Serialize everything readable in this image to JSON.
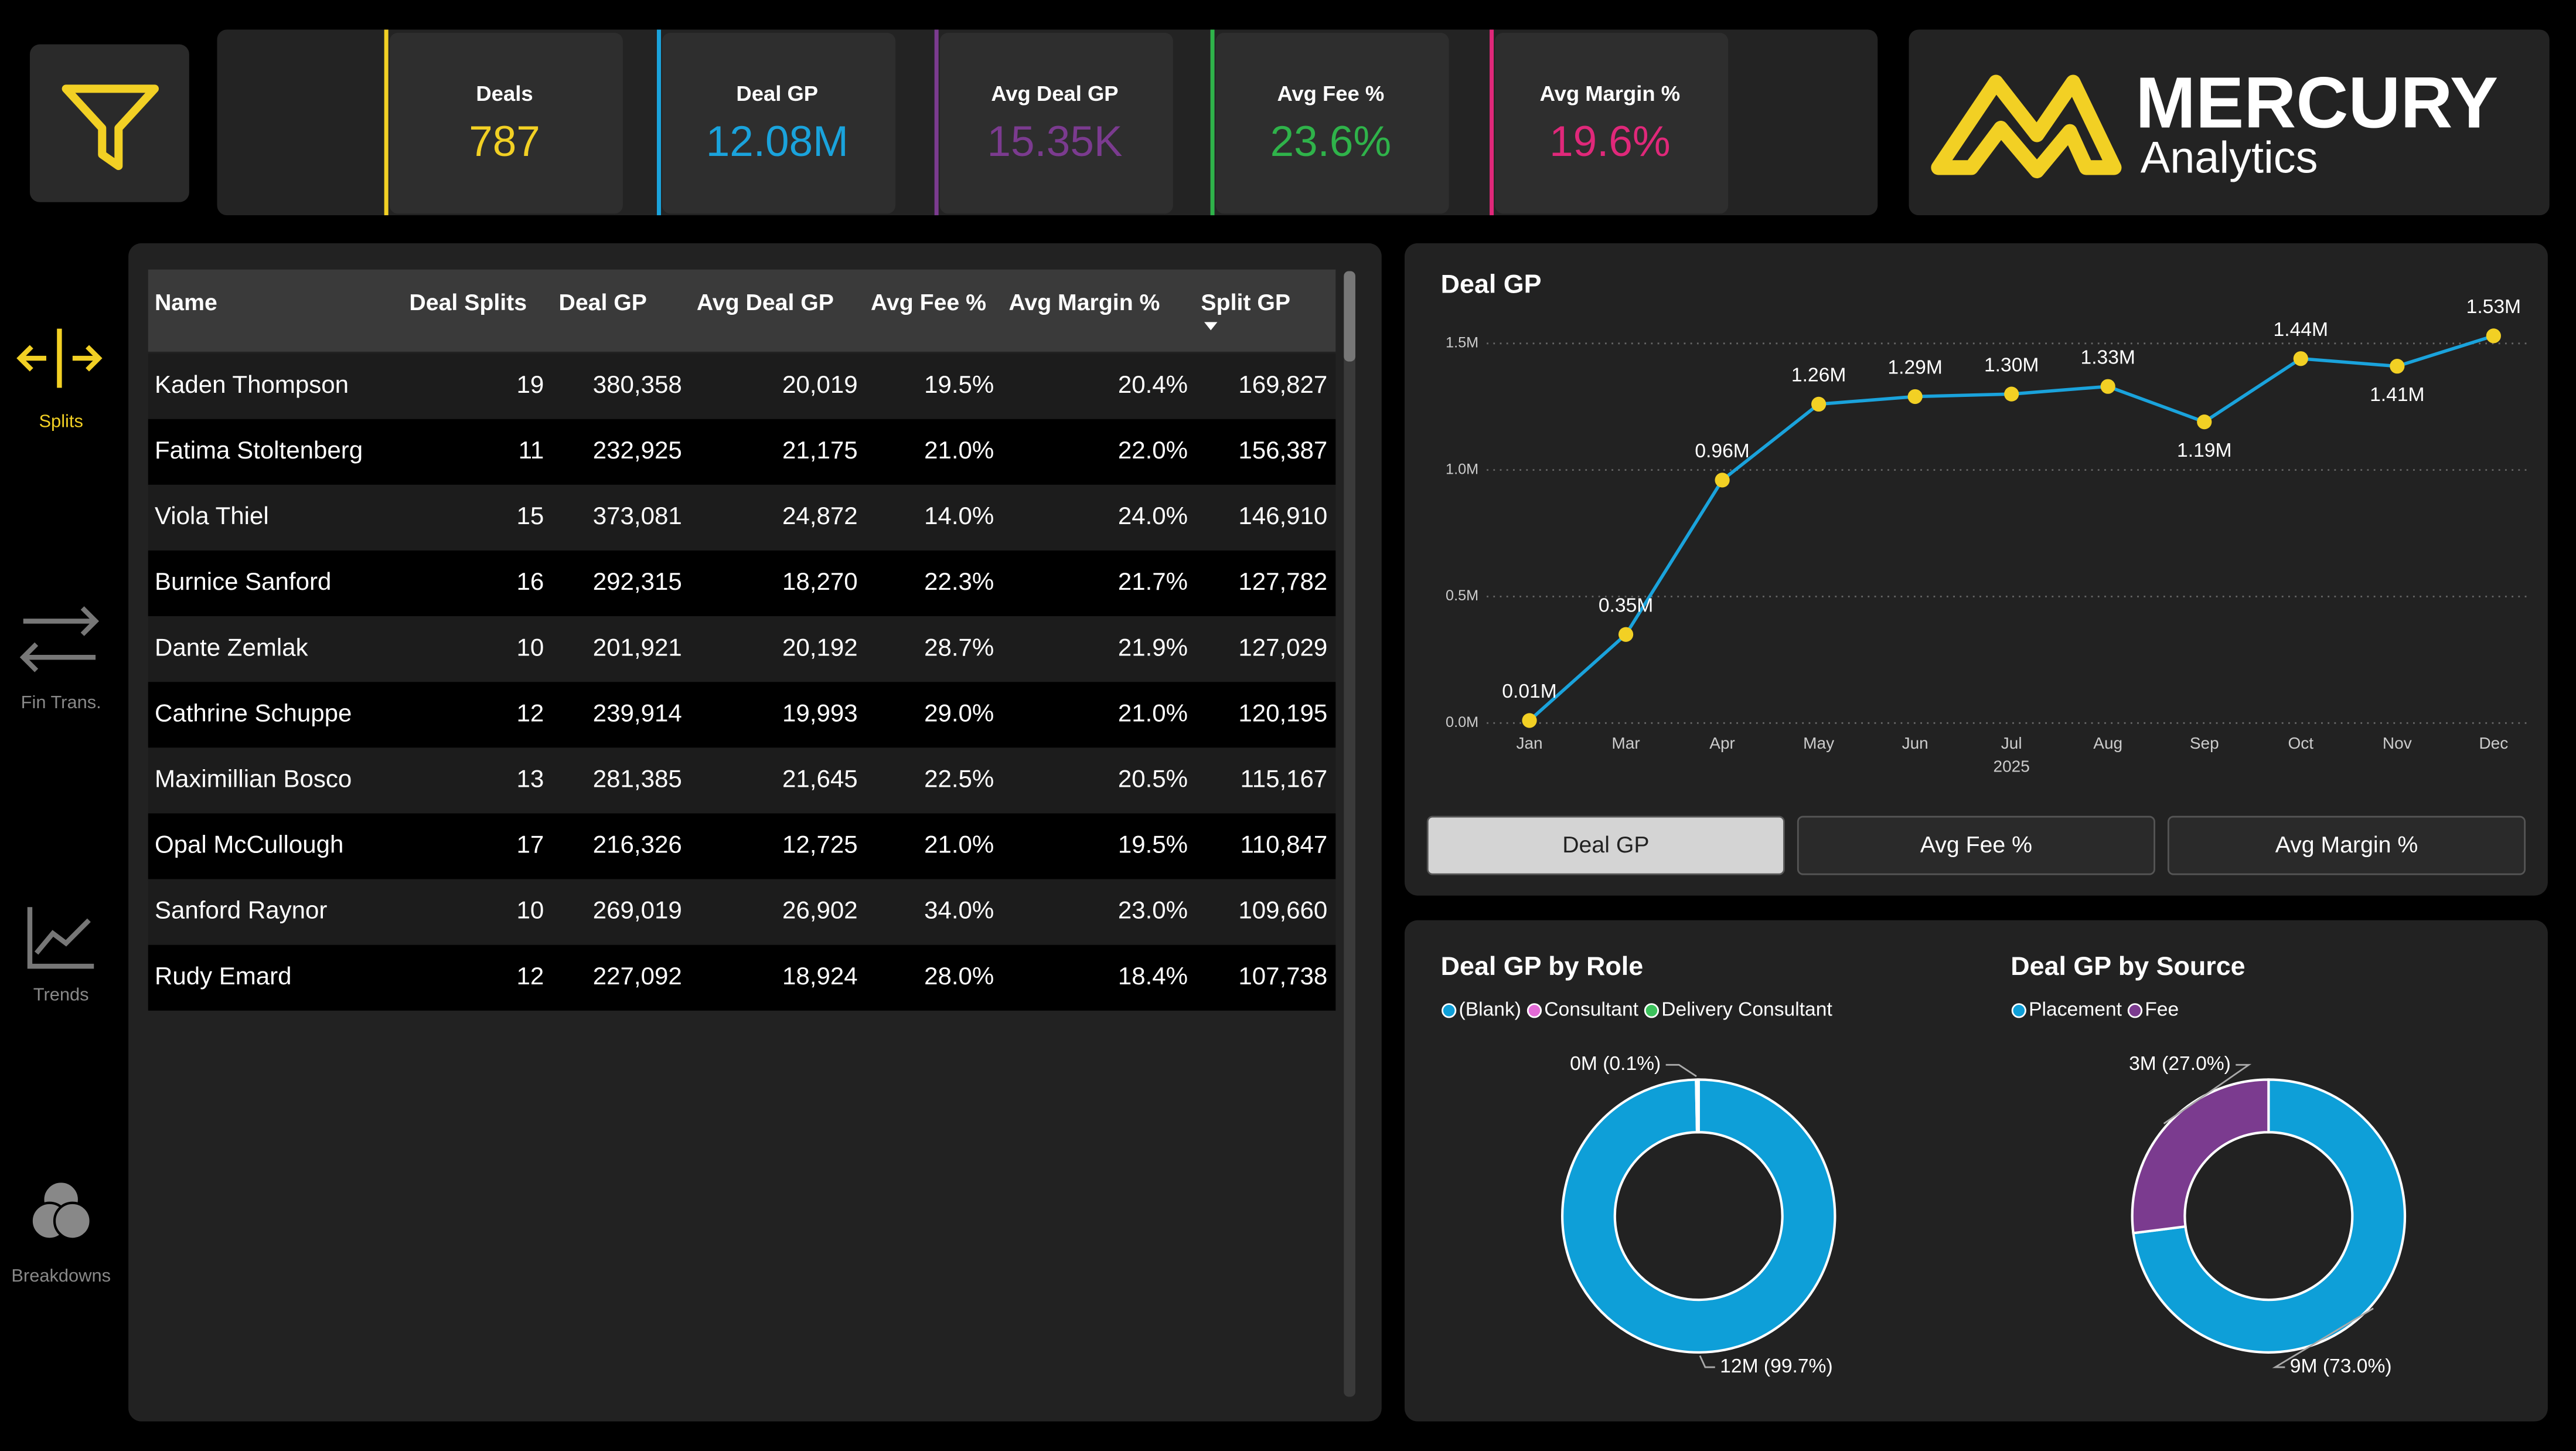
{
  "nav": [
    "Splits",
    "Fin Trans.",
    "Trends",
    "Breakdowns"
  ],
  "kpis": [
    {
      "label": "Deals",
      "value": "787",
      "color": "#f2d024"
    },
    {
      "label": "Deal GP",
      "value": "12.08M",
      "color": "#1aa3dc"
    },
    {
      "label": "Avg Deal GP",
      "value": "15.35K",
      "color": "#7b3b8f"
    },
    {
      "label": "Avg Fee %",
      "value": "23.6%",
      "color": "#2fb34a"
    },
    {
      "label": "Avg Margin %",
      "value": "19.6%",
      "color": "#e0287a"
    }
  ],
  "logo": {
    "title": "MERCURY",
    "subtitle": "Analytics"
  },
  "table": {
    "columns": [
      "Name",
      "Deal Splits",
      "Deal GP",
      "Avg Deal GP",
      "Avg Fee %",
      "Avg Margin %",
      "Split GP"
    ],
    "rows": [
      [
        "Kaden Thompson",
        "19",
        "380,358",
        "20,019",
        "19.5%",
        "20.4%",
        "169,827"
      ],
      [
        "Fatima Stoltenberg",
        "11",
        "232,925",
        "21,175",
        "21.0%",
        "22.0%",
        "156,387"
      ],
      [
        "Viola Thiel",
        "15",
        "373,081",
        "24,872",
        "14.0%",
        "24.0%",
        "146,910"
      ],
      [
        "Burnice Sanford",
        "16",
        "292,315",
        "18,270",
        "22.3%",
        "21.7%",
        "127,782"
      ],
      [
        "Dante Zemlak",
        "10",
        "201,921",
        "20,192",
        "28.7%",
        "21.9%",
        "127,029"
      ],
      [
        "Cathrine Schuppe",
        "12",
        "239,914",
        "19,993",
        "29.0%",
        "21.0%",
        "120,195"
      ],
      [
        "Maximillian Bosco",
        "13",
        "281,385",
        "21,645",
        "22.5%",
        "20.5%",
        "115,167"
      ],
      [
        "Opal McCullough",
        "17",
        "216,326",
        "12,725",
        "21.0%",
        "19.5%",
        "110,847"
      ],
      [
        "Sanford Raynor",
        "10",
        "269,019",
        "26,902",
        "34.0%",
        "23.0%",
        "109,660"
      ],
      [
        "Rudy Emard",
        "12",
        "227,092",
        "18,924",
        "28.0%",
        "18.4%",
        "107,738"
      ]
    ]
  },
  "tabs": [
    "Deal GP",
    "Avg Fee %",
    "Avg Margin %"
  ],
  "chart_data": [
    {
      "type": "line",
      "title": "Deal GP",
      "categories": [
        "Jan",
        "Mar",
        "Apr",
        "May",
        "Jun",
        "Jul",
        "Aug",
        "Sep",
        "Oct",
        "Nov",
        "Dec"
      ],
      "xlabel": "2025",
      "values": [
        0.01,
        0.35,
        0.96,
        1.26,
        1.29,
        1.3,
        1.33,
        1.19,
        1.44,
        1.41,
        1.53
      ],
      "value_labels": [
        "0.01M",
        "0.35M",
        "0.96M",
        "1.26M",
        "1.29M",
        "1.30M",
        "1.33M",
        "1.19M",
        "1.44M",
        "1.41M",
        "1.53M"
      ],
      "color": "#1aa3dc",
      "marker_color": "#f2d024",
      "ylim": [
        0,
        1.5
      ],
      "yticks": [
        {
          "value": 0,
          "label": "0.0M"
        },
        {
          "value": 0.5,
          "label": "0.5M"
        },
        {
          "value": 1.0,
          "label": "1.0M"
        },
        {
          "value": 1.5,
          "label": "1.5M"
        }
      ],
      "grid": true
    },
    {
      "type": "donut",
      "title": "Deal GP by Role",
      "categories": [
        "(Blank)",
        "Consultant",
        "Delivery Consultant"
      ],
      "values": [
        99.7,
        0.1,
        0.2
      ],
      "value_labels": [
        "12M (99.7%)",
        "0M (0.1%)",
        null
      ],
      "colors": [
        "#0e9fd8",
        "#e36ad6",
        "#3cc25c"
      ]
    },
    {
      "type": "donut",
      "title": "Deal GP by Source",
      "categories": [
        "Placement",
        "Fee"
      ],
      "values": [
        73.0,
        27.0
      ],
      "value_labels": [
        "9M (73.0%)",
        "3M (27.0%)"
      ],
      "colors": [
        "#0e9fd8",
        "#7b3b8f"
      ]
    }
  ]
}
